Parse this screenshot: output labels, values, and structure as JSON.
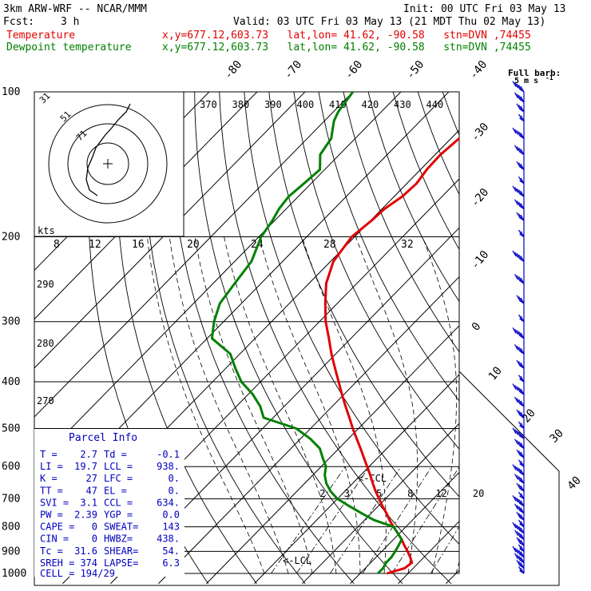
{
  "header": {
    "model": "3km ARW-WRF -- NCAR/MMM",
    "init": "Init: 00 UTC Fri 03 May 13",
    "fcst_label": "Fcst:",
    "fcst_value": "3 h",
    "valid": "Valid: 03 UTC Fri 03 May 13 (21 MDT Thu 02 May 13)"
  },
  "legend": [
    {
      "name": "Temperature",
      "color": "#e00000",
      "loc": "x,y=677.12,603.73   lat,lon= 41.62, -90.58   stn=DVN ,74455"
    },
    {
      "name": "Dewpoint temperature",
      "color": "#008000",
      "loc": "x,y=677.12,603.73   lat,lon= 41.62, -90.58   stn=DVN ,74455"
    }
  ],
  "barb_key": {
    "title": "Full barb:",
    "value": "5 m s",
    "sup": "-1"
  },
  "colors": {
    "temperature": "#e00000",
    "dewpoint": "#008000",
    "barbs": "#0000c0",
    "info": "#0000c0",
    "grid": "#000000"
  },
  "chart_data": {
    "type": "line",
    "pressure_levels": [
      100,
      200,
      300,
      400,
      500,
      600,
      700,
      800,
      900,
      1000
    ],
    "isotherm_labels": [
      "-80",
      "-70",
      "-60",
      "-50",
      "-40",
      "-30",
      "-20",
      "-10",
      "0",
      "10",
      "20",
      "30",
      "40"
    ],
    "theta_labels": [
      "370",
      "380",
      "390",
      "400",
      "410",
      "420",
      "430",
      "440"
    ],
    "theta_side_labels": [
      "290",
      "280",
      "270"
    ],
    "mixing_ratio_labels": [
      "2",
      "3",
      "5",
      "8",
      "12",
      "20"
    ],
    "hodo_speed_axis": [
      "8",
      "12",
      "16",
      "20",
      "24",
      "28",
      "32"
    ],
    "hodo_rings": [
      "31",
      "51",
      "71"
    ],
    "hodo_unit": "kts",
    "ccl_label": "<-CCL",
    "lcl_label": "<-LCL",
    "series": [
      {
        "name": "Temperature",
        "p": [
          1000,
          975,
          950,
          925,
          900,
          875,
          850,
          825,
          800,
          775,
          750,
          725,
          700,
          675,
          650,
          625,
          600,
          575,
          550,
          525,
          500,
          475,
          450,
          425,
          400,
          375,
          350,
          325,
          300,
          275,
          250,
          225,
          200,
          185,
          175,
          165,
          155,
          145,
          135,
          125,
          115,
          110,
          105,
          100
        ],
        "t": [
          15.6,
          18.2,
          18.6,
          17.1,
          15.4,
          13.5,
          11.7,
          9.6,
          7.4,
          5.2,
          3.2,
          0.9,
          -1.3,
          -3.6,
          -5.8,
          -8.0,
          -10.4,
          -12.9,
          -15.5,
          -18.3,
          -21.2,
          -24.1,
          -27.2,
          -30.4,
          -33.7,
          -37.2,
          -40.9,
          -44.6,
          -48.7,
          -52.5,
          -56.4,
          -59.4,
          -60.6,
          -59.8,
          -59.5,
          -58.3,
          -58.0,
          -58.7,
          -58.9,
          -58.3,
          -56.3,
          -56.6,
          -56.7,
          -57.3
        ]
      },
      {
        "name": "Dewpoint temperature",
        "p": [
          1000,
          975,
          950,
          925,
          900,
          875,
          850,
          825,
          800,
          775,
          750,
          725,
          700,
          675,
          650,
          625,
          600,
          575,
          550,
          525,
          500,
          475,
          450,
          425,
          400,
          375,
          350,
          325,
          300,
          275,
          250,
          225,
          200,
          185,
          175,
          165,
          155,
          145,
          135,
          125,
          115,
          110,
          105,
          100
        ],
        "t": [
          13.7,
          13.7,
          13.2,
          13.2,
          12.8,
          12.3,
          11.7,
          9.6,
          7.4,
          2.0,
          -2.0,
          -6.0,
          -10.0,
          -13.0,
          -15.5,
          -17.5,
          -19.0,
          -21.5,
          -24.0,
          -28.0,
          -33.0,
          -42.0,
          -45.0,
          -49.0,
          -54.0,
          -58.0,
          -62.0,
          -69.0,
          -72.0,
          -74.5,
          -75.5,
          -76.5,
          -79.5,
          -80.5,
          -81.5,
          -82.0,
          -81.5,
          -81.0,
          -84.0,
          -85.0,
          -88.0,
          -89.0,
          -89.5,
          -90.0
        ]
      }
    ],
    "wind_barbs_p": [
      1000,
      975,
      950,
      925,
      900,
      875,
      850,
      825,
      800,
      775,
      750,
      725,
      700,
      675,
      650,
      625,
      600,
      575,
      550,
      525,
      500,
      475,
      450,
      425,
      400,
      375,
      350,
      325,
      300,
      275,
      250,
      225,
      200,
      185,
      175,
      165,
      155,
      145,
      135,
      125,
      115,
      110,
      105,
      100
    ]
  },
  "parcel_info": {
    "title": "Parcel Info",
    "rows": [
      {
        "l1": "T  =",
        "v1": "2.7",
        "l2": "Td =",
        "v2": "-0.1"
      },
      {
        "l1": "LI =",
        "v1": "19.7",
        "l2": "LCL =",
        "v2": "938."
      },
      {
        "l1": "K  =",
        "v1": "27",
        "l2": "LFC =",
        "v2": "0."
      },
      {
        "l1": "TT =",
        "v1": "47",
        "l2": "EL  =",
        "v2": "0."
      },
      {
        "l1": "SVI =",
        "v1": "3.1",
        "l2": "CCL =",
        "v2": "634."
      },
      {
        "l1": "PW =",
        "v1": "2.39",
        "l2": "YGP =",
        "v2": "0.0"
      },
      {
        "l1": "CAPE =",
        "v1": "0",
        "l2": "SWEAT=",
        "v2": "143"
      },
      {
        "l1": "CIN =",
        "v1": "0",
        "l2": "HWBZ=",
        "v2": "438."
      },
      {
        "l1": "Tc =",
        "v1": "31.6",
        "l2": "SHEAR=",
        "v2": "54."
      },
      {
        "l1": "SREH =",
        "v1": "374",
        "l2": "LAPSE=",
        "v2": "6.3"
      }
    ],
    "cell": "CELL = 194/29"
  }
}
